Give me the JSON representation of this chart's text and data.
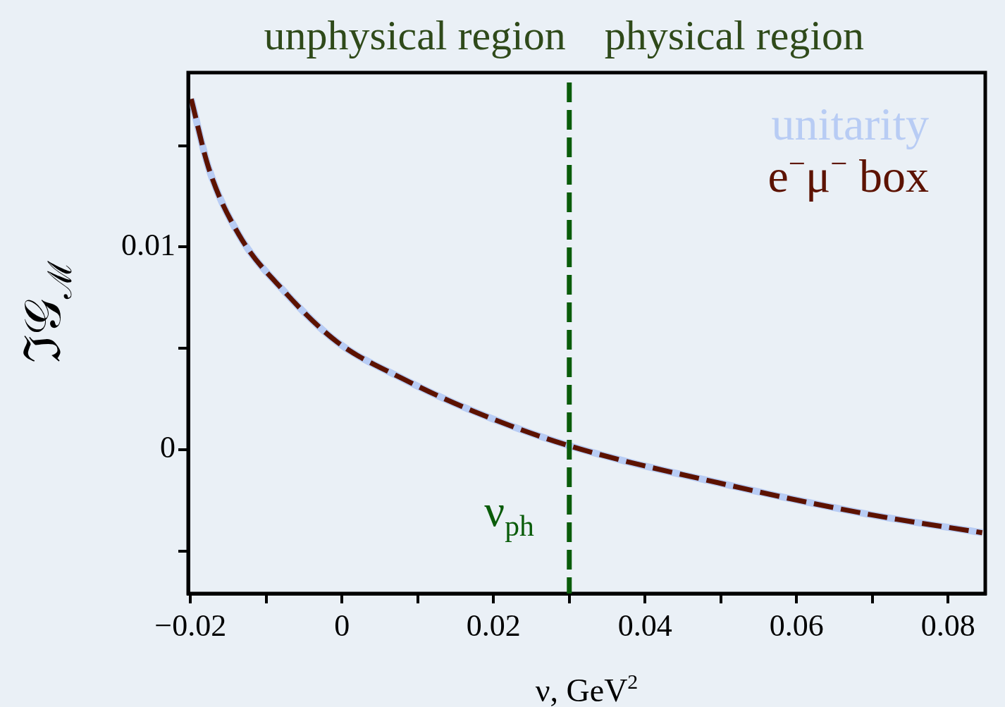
{
  "chart_data": {
    "type": "line",
    "xlabel": "ν, GeV$^{2}$",
    "ylabel": "ℑ𝒢$_{ℳ}$",
    "x": [
      -0.0199,
      -0.0176,
      -0.0136,
      -0.0076,
      -0.0006,
      0.008,
      0.0173,
      0.0299,
      0.0504,
      0.0696,
      0.0845
    ],
    "series": [
      {
        "name": "unitarity",
        "color": "#b8ccf4",
        "line_style": "solid",
        "values": [
          0.0173,
          0.0139,
          0.0106,
          0.0078,
          0.0053,
          0.0035,
          0.0019,
          0.0002,
          -0.0017,
          -0.0032,
          -0.0041
        ]
      },
      {
        "name": "e$^{−}$μ$^{−}$ box",
        "color": "#5c1200",
        "line_style": "dashed",
        "values": [
          0.0173,
          0.0139,
          0.0106,
          0.0078,
          0.0053,
          0.0035,
          0.0019,
          0.0002,
          -0.0017,
          -0.0032,
          -0.0041
        ]
      }
    ],
    "xlim": [
      -0.0203,
      0.0849
    ],
    "ylim": [
      -0.0071,
      0.0186
    ],
    "xticks": [
      {
        "value": -0.02,
        "label": "−0.02"
      },
      {
        "value": -0.01,
        "label": null
      },
      0,
      {
        "value": 0.01,
        "label": null
      },
      0.02,
      {
        "value": 0.03,
        "label": null
      },
      0.04,
      {
        "value": 0.05,
        "label": null
      },
      0.06,
      {
        "value": 0.07,
        "label": null
      },
      0.08
    ],
    "yticks": [
      {
        "value": -0.005,
        "label": null
      },
      0,
      {
        "value": 0.005,
        "label": null
      },
      0.01,
      {
        "value": 0.015,
        "label": null
      }
    ],
    "ref_lines": [
      {
        "axis": "x",
        "value": 0.03,
        "label": "ν$_{ph}$",
        "color": "#0a5c0a",
        "line_style": "dashed"
      }
    ],
    "annotations": [
      "unphysical region",
      "physical region"
    ],
    "legend": "top right",
    "grid": false,
    "marker": "none"
  }
}
